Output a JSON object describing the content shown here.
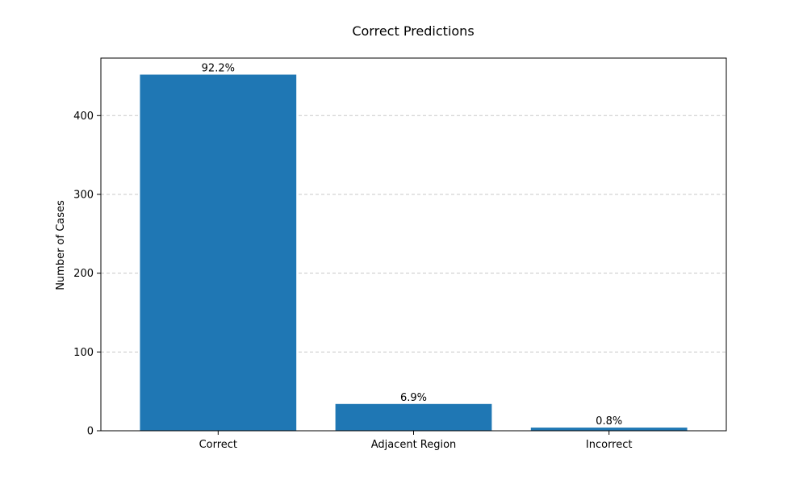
{
  "chart_data": {
    "type": "bar",
    "title": "Correct Predictions",
    "xlabel": "",
    "ylabel": "Number of Cases",
    "categories": [
      "Correct",
      "Adjacent Region",
      "Incorrect"
    ],
    "values": [
      452,
      34,
      4
    ],
    "data_labels": [
      "92.2%",
      "6.9%",
      "0.8%"
    ],
    "ylim": [
      0,
      473
    ],
    "yticks": [
      0,
      100,
      200,
      300,
      400
    ],
    "grid": "y-dashed",
    "legend": "none",
    "colors": {
      "bar": "#1f77b4",
      "grid": "#c8c8c8",
      "axis": "#000000"
    }
  }
}
